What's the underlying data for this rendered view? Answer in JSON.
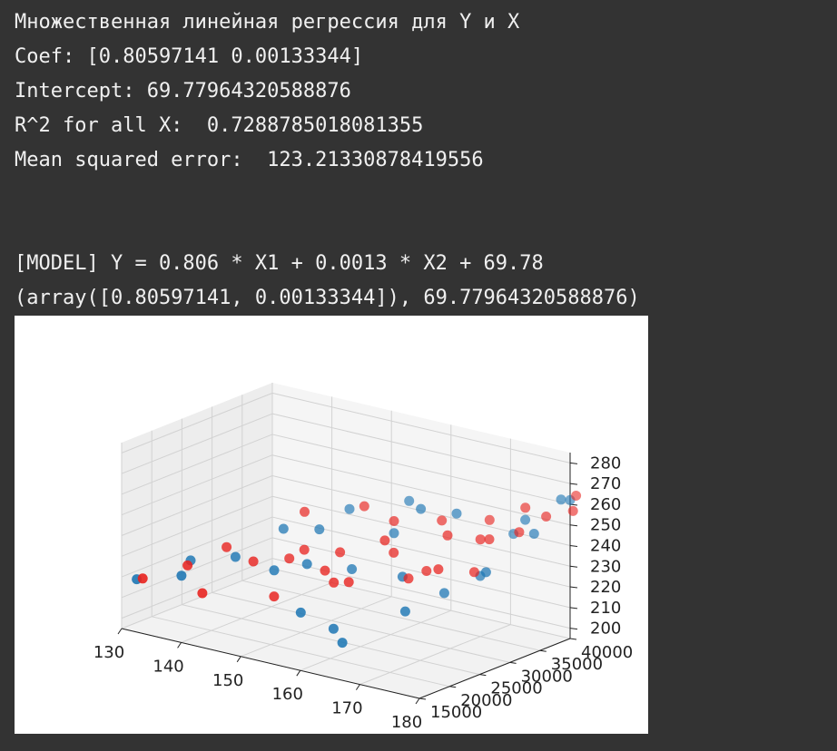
{
  "output": {
    "title": "Множественная линейная регрессия для Y и X",
    "coef": "Coef: [0.80597141 0.00133344]",
    "intercept": "Intercept: 69.77964320588876",
    "r2": "R^2 for all X:  0.7288785018081355",
    "mse": "Mean squared error:  123.21330878419556",
    "model": "[MODEL] Y = 0.806 * X1 + 0.0013 * X2 + 69.78",
    "tuple": "(array([0.80597141, 0.00133344]), 69.77964320588876)"
  },
  "chart_data": {
    "type": "scatter",
    "projection": "3d",
    "grid": true,
    "xlim": [
      130,
      180
    ],
    "ylim": [
      15000,
      40000
    ],
    "zlim": [
      195,
      285
    ],
    "x_ticks": [
      "130",
      "140",
      "150",
      "160",
      "170",
      "180"
    ],
    "y_ticks": [
      "15000",
      "20000",
      "25000",
      "30000",
      "35000",
      "40000"
    ],
    "z_ticks": [
      "200",
      "210",
      "220",
      "230",
      "240",
      "250",
      "260",
      "270",
      "280"
    ],
    "series": [
      {
        "color": "#1f77b4",
        "points": [
          [
            130,
            17500,
            216
          ],
          [
            136,
            19000,
            220
          ],
          [
            134,
            22500,
            222
          ],
          [
            140,
            24000,
            226
          ],
          [
            146,
            24500,
            223
          ],
          [
            150,
            26000,
            227
          ],
          [
            154,
            21000,
            212
          ],
          [
            155,
            28500,
            225
          ],
          [
            159,
            21500,
            207
          ],
          [
            162,
            20000,
            204
          ],
          [
            168,
            24500,
            218
          ],
          [
            170,
            29000,
            223
          ],
          [
            172,
            33000,
            228
          ],
          [
            176,
            30000,
            236
          ],
          [
            172,
            38500,
            242
          ],
          [
            178,
            36000,
            249
          ],
          [
            180,
            40000,
            262
          ],
          [
            147,
            36000,
            240
          ],
          [
            157,
            33500,
            238
          ],
          [
            147,
            31000,
            236
          ],
          [
            155,
            38000,
            247
          ],
          [
            165,
            36000,
            250
          ],
          [
            175,
            37500,
            252
          ],
          [
            180,
            38500,
            264
          ],
          [
            160,
            35000,
            250
          ],
          [
            142,
            30000,
            234
          ],
          [
            164,
            28000,
            228
          ]
        ]
      },
      {
        "color": "#e8231f",
        "points": [
          [
            131,
            17500,
            217
          ],
          [
            135,
            21000,
            222
          ],
          [
            139,
            19500,
            213
          ],
          [
            137,
            25500,
            227
          ],
          [
            142,
            25000,
            224
          ],
          [
            148,
            22500,
            214
          ],
          [
            147,
            28500,
            229
          ],
          [
            152,
            27000,
            224
          ],
          [
            155,
            25500,
            222
          ],
          [
            157,
            26000,
            223
          ],
          [
            164,
            29000,
            226
          ],
          [
            160,
            30500,
            234
          ],
          [
            168,
            30000,
            232
          ],
          [
            172,
            32000,
            231
          ],
          [
            172,
            34500,
            244
          ],
          [
            176,
            35500,
            249
          ],
          [
            178,
            38000,
            255
          ],
          [
            180,
            41000,
            263
          ],
          [
            181,
            39500,
            258
          ],
          [
            150,
            35500,
            244
          ],
          [
            156,
            34500,
            242
          ],
          [
            162,
            36500,
            244
          ],
          [
            168,
            38500,
            246
          ],
          [
            170,
            35000,
            242
          ],
          [
            143,
            32500,
            240
          ],
          [
            158,
            31000,
            238
          ],
          [
            166,
            33500,
            243
          ],
          [
            152,
            29500,
            230
          ],
          [
            165,
            31000,
            228
          ],
          [
            145,
            28000,
            224
          ],
          [
            174,
            38500,
            256
          ]
        ]
      }
    ]
  }
}
